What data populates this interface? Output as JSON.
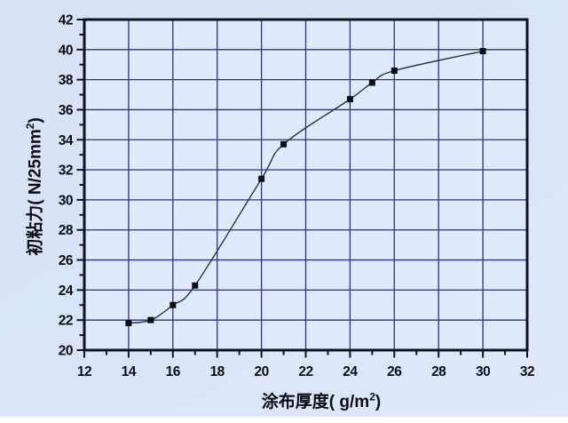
{
  "chart_data": {
    "type": "line",
    "x": [
      14,
      15,
      16,
      17,
      20,
      21,
      24,
      25,
      26,
      30
    ],
    "y": [
      21.8,
      22.0,
      23.0,
      24.3,
      31.4,
      33.7,
      36.7,
      37.8,
      38.6,
      39.9
    ],
    "xlim": [
      12,
      32
    ],
    "ylim": [
      20,
      42
    ],
    "xticks": [
      12,
      14,
      16,
      18,
      20,
      22,
      24,
      26,
      28,
      30,
      32
    ],
    "yticks": [
      20,
      22,
      24,
      26,
      28,
      30,
      32,
      34,
      36,
      38,
      40,
      42
    ],
    "minor_tick_step": 1,
    "grid": "on",
    "legend": "none",
    "marker": "square",
    "curve_style": "smooth-spline",
    "xlabel": {
      "prefix": "涂布厚度( g/m",
      "sup": "2",
      "suffix": ")"
    },
    "ylabel": {
      "prefix": "初粘力( N/25mm",
      "sup": "2",
      "suffix": ")"
    },
    "colors": {
      "outer_bg": "#d8e3f8",
      "plot_bg": "#dfeafc",
      "grid": "#30307e",
      "frame": "#12121f",
      "tick": "#12121f",
      "curve": "#26334a",
      "marker": "#0b0b16",
      "text": "#0a0a12",
      "bottom_strip": "#ffffff"
    }
  }
}
